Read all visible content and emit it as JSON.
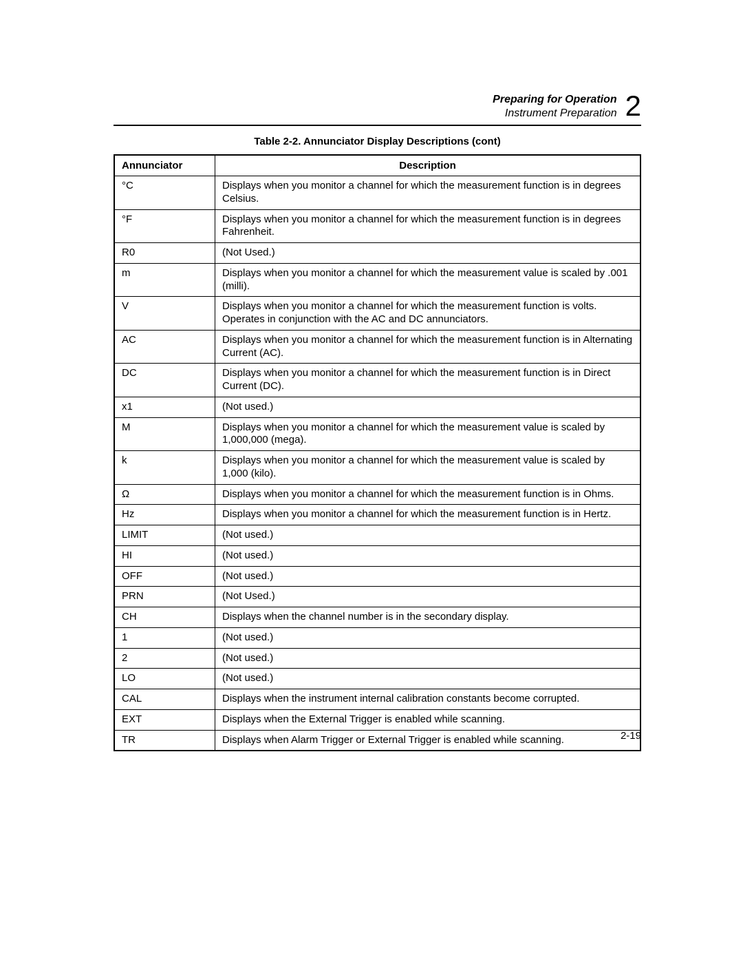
{
  "header": {
    "chapter_title": "Preparing for Operation",
    "section_title": "Instrument Preparation",
    "chapter_number": "2"
  },
  "table": {
    "caption": "Table 2-2. Annunciator Display Descriptions (cont)",
    "columns": [
      "Annunciator",
      "Description"
    ],
    "rows": [
      {
        "ann": "°C",
        "desc": "Displays when you monitor a channel for which the measurement function is in degrees Celsius."
      },
      {
        "ann": "°F",
        "desc": "Displays when you monitor a channel for which the measurement function is in degrees Fahrenheit."
      },
      {
        "ann": "R0",
        "desc": "(Not Used.)"
      },
      {
        "ann": "m",
        "desc": "Displays when you monitor a channel for which the measurement value is scaled by .001 (milli)."
      },
      {
        "ann": "V",
        "desc": "Displays when you monitor a channel for which the measurement function is volts. Operates in conjunction with the AC and DC annunciators."
      },
      {
        "ann": "AC",
        "desc": "Displays when you monitor a channel for which the measurement function is in Alternating Current (AC)."
      },
      {
        "ann": "DC",
        "desc": "Displays when you monitor a channel for which the measurement function is in Direct Current (DC)."
      },
      {
        "ann": "x1",
        "desc": "(Not used.)"
      },
      {
        "ann": "M",
        "desc": "Displays when you monitor a channel for which the measurement value is scaled by 1,000,000 (mega)."
      },
      {
        "ann": "k",
        "desc": "Displays when you monitor a channel for which the measurement value is scaled by 1,000 (kilo)."
      },
      {
        "ann": "Ω",
        "desc": "Displays when you monitor a channel for which the measurement function is in Ohms."
      },
      {
        "ann": "Hz",
        "desc": "Displays when you monitor a channel for which the measurement function is in Hertz."
      },
      {
        "ann": "LIMIT",
        "desc": "(Not used.)"
      },
      {
        "ann": "HI",
        "desc": "(Not used.)"
      },
      {
        "ann": "OFF",
        "desc": "(Not used.)"
      },
      {
        "ann": "PRN",
        "desc": "(Not Used.)"
      },
      {
        "ann": "CH",
        "desc": "Displays when the channel number is in the secondary display."
      },
      {
        "ann": "1",
        "desc": "(Not used.)"
      },
      {
        "ann": "2",
        "desc": "(Not used.)"
      },
      {
        "ann": "LO",
        "desc": "(Not used.)"
      },
      {
        "ann": "CAL",
        "desc": "Displays when the instrument internal calibration constants become corrupted."
      },
      {
        "ann": "EXT",
        "desc": "Displays when the External Trigger is enabled while scanning."
      },
      {
        "ann": "TR",
        "desc": "Displays when Alarm Trigger or External Trigger is enabled while scanning."
      }
    ]
  },
  "page_number": "2-19"
}
